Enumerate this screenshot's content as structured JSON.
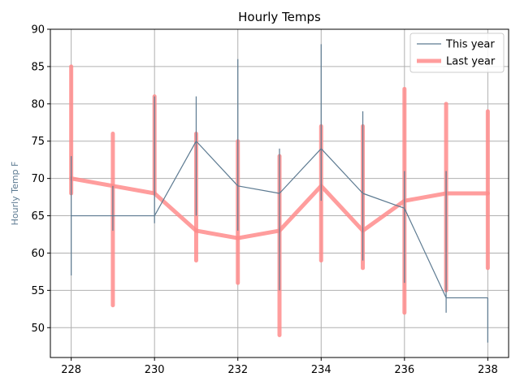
{
  "chart_data": {
    "type": "line",
    "title": "Hourly Temps",
    "xlabel": "",
    "ylabel": "Hourly Temp F",
    "xlim": [
      227.5,
      238.5
    ],
    "ylim": [
      46,
      90
    ],
    "xticks": [
      228,
      230,
      232,
      234,
      236,
      238
    ],
    "yticks": [
      50,
      55,
      60,
      65,
      70,
      75,
      80,
      85,
      90
    ],
    "grid": true,
    "legend_position": "top-right",
    "series": [
      {
        "name": "This year",
        "style": "step-with-range",
        "color": "#5c7a91",
        "points": [
          {
            "x": 228,
            "y": 65,
            "low": 57,
            "high": 73
          },
          {
            "x": 229,
            "y": 65,
            "low": 63,
            "high": 69
          },
          {
            "x": 230,
            "y": 65,
            "low": 64,
            "high": 81
          },
          {
            "x": 231,
            "y": 75,
            "low": 65,
            "high": 81
          },
          {
            "x": 232,
            "y": 69,
            "low": 63,
            "high": 86
          },
          {
            "x": 233,
            "y": 68,
            "low": 55,
            "high": 74
          },
          {
            "x": 234,
            "y": 74,
            "low": 67,
            "high": 88
          },
          {
            "x": 235,
            "y": 68,
            "low": 59,
            "high": 79
          },
          {
            "x": 236,
            "y": 66,
            "low": 56,
            "high": 71
          },
          {
            "x": 237,
            "y": 54,
            "low": 52,
            "high": 71
          },
          {
            "x": 238,
            "y": 54,
            "low": 48,
            "high": 54
          }
        ]
      },
      {
        "name": "Last year",
        "style": "step-with-range",
        "color": "#ff8c8c",
        "points": [
          {
            "x": 228,
            "y": 70,
            "low": 68,
            "high": 85
          },
          {
            "x": 229,
            "y": 69,
            "low": 53,
            "high": 76
          },
          {
            "x": 230,
            "y": 68,
            "low": 68,
            "high": 81
          },
          {
            "x": 231,
            "y": 63,
            "low": 59,
            "high": 76
          },
          {
            "x": 232,
            "y": 62,
            "low": 56,
            "high": 75
          },
          {
            "x": 233,
            "y": 63,
            "low": 49,
            "high": 73
          },
          {
            "x": 234,
            "y": 69,
            "low": 59,
            "high": 77
          },
          {
            "x": 235,
            "y": 63,
            "low": 58,
            "high": 77
          },
          {
            "x": 236,
            "y": 67,
            "low": 52,
            "high": 82
          },
          {
            "x": 237,
            "y": 68,
            "low": 55,
            "high": 80
          },
          {
            "x": 238,
            "y": 68,
            "low": 58,
            "high": 79
          }
        ]
      }
    ]
  }
}
